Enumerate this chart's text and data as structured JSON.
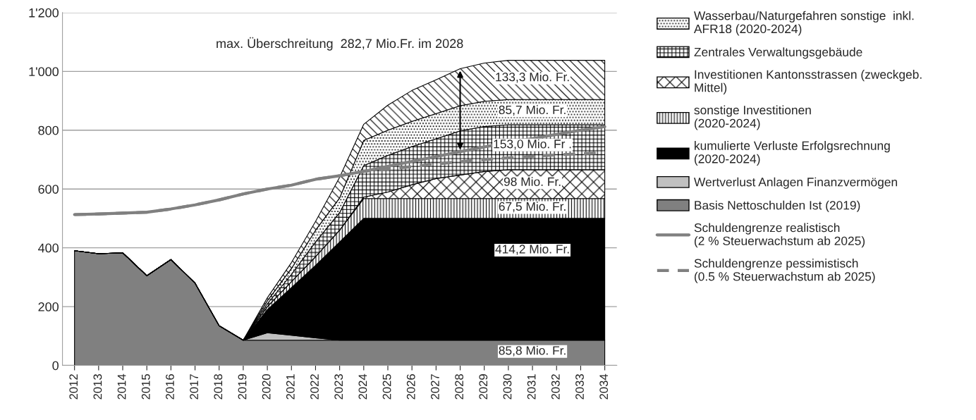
{
  "chart_data": {
    "type": "area",
    "stacked": true,
    "categories": [
      "2012",
      "2013",
      "2014",
      "2015",
      "2016",
      "2017",
      "2018",
      "2019",
      "2020",
      "2021",
      "2022",
      "2023",
      "2024",
      "2025",
      "2026",
      "2027",
      "2028",
      "2029",
      "2030",
      "2031",
      "2032",
      "2033",
      "2034"
    ],
    "series": [
      {
        "name": "Basis Nettoschulden Ist (2019)",
        "color": "#808080",
        "values": [
          390,
          380,
          383,
          305,
          360,
          280,
          135,
          85.8,
          85.8,
          85.8,
          85.8,
          85.8,
          85.8,
          85.8,
          85.8,
          85.8,
          85.8,
          85.8,
          85.8,
          85.8,
          85.8,
          85.8,
          85.8
        ],
        "value_labels": [
          null,
          null,
          null,
          null,
          null,
          null,
          null,
          null,
          null,
          null,
          null,
          null,
          null,
          null,
          null,
          null,
          null,
          null,
          null,
          "85,8 Mio. Fr.",
          null,
          null,
          null
        ]
      },
      {
        "name": "Wertverlust Anlagen Finanzvermögen",
        "color": "#c0c0c0",
        "values": [
          0,
          0,
          0,
          0,
          0,
          0,
          0,
          0,
          25,
          17,
          8,
          0,
          0,
          0,
          0,
          0,
          0,
          0,
          0,
          0,
          0,
          0,
          0
        ]
      },
      {
        "name": "kumulierte Verluste Erfolgsrechnung\n(2020-2024)",
        "color": "#000000",
        "values": [
          0,
          0,
          0,
          0,
          0,
          0,
          0,
          0,
          79,
          162,
          246,
          334,
          414.2,
          414.2,
          414.2,
          414.2,
          414.2,
          414.2,
          414.2,
          414.2,
          414.2,
          414.2,
          414.2
        ],
        "value_labels": [
          null,
          null,
          null,
          null,
          null,
          null,
          null,
          null,
          null,
          null,
          null,
          null,
          null,
          null,
          null,
          null,
          null,
          null,
          null,
          "414,2 Mio. Fr.",
          null,
          null,
          null
        ]
      },
      {
        "name": "sonstige Investitionen\n(2020-2024)",
        "color": "#000000",
        "values": [
          0,
          0,
          0,
          0,
          0,
          0,
          0,
          0,
          10,
          20,
          30,
          40,
          67.5,
          67.5,
          67.5,
          67.5,
          67.5,
          67.5,
          67.5,
          67.5,
          67.5,
          67.5,
          67.5
        ],
        "value_labels": [
          null,
          null,
          null,
          null,
          null,
          null,
          null,
          null,
          null,
          null,
          null,
          null,
          null,
          null,
          null,
          null,
          null,
          null,
          null,
          "67,5 Mio. Fr.",
          null,
          null,
          null
        ]
      },
      {
        "name": "Investitionen Kantonsstrassen (zweckgeb.\nMittel)",
        "color": "#000000",
        "values": [
          0,
          0,
          0,
          0,
          0,
          0,
          0,
          0,
          0,
          0,
          0,
          0,
          5,
          22,
          47,
          68,
          80,
          92,
          98,
          98,
          98,
          98,
          98
        ],
        "value_labels": [
          null,
          null,
          null,
          null,
          null,
          null,
          null,
          null,
          null,
          null,
          null,
          null,
          null,
          null,
          null,
          null,
          null,
          null,
          null,
          "98 Mio. Fr.",
          null,
          null,
          null
        ]
      },
      {
        "name": "Zentrales Verwaltungsgebäude",
        "color": "#000000",
        "values": [
          0,
          0,
          0,
          0,
          0,
          0,
          0,
          0,
          10,
          25,
          50,
          60,
          107,
          125,
          130,
          135,
          150,
          153,
          153,
          153,
          153,
          153,
          153
        ],
        "value_labels": [
          null,
          null,
          null,
          null,
          null,
          null,
          null,
          null,
          null,
          null,
          null,
          null,
          null,
          null,
          null,
          null,
          null,
          null,
          null,
          "153,0 Mio. Fr .",
          null,
          null,
          null
        ]
      },
      {
        "name": "Wasserbau/Naturgefahren sonstige  inkl.\nAFR18 (2020-2024)",
        "color": "#000000",
        "values": [
          0,
          0,
          0,
          0,
          0,
          0,
          0,
          0,
          10,
          20,
          40,
          50,
          85.7,
          85.7,
          85.7,
          85.7,
          85.7,
          85.7,
          85.7,
          85.7,
          85.7,
          85.7,
          85.7
        ],
        "value_labels": [
          null,
          null,
          null,
          null,
          null,
          null,
          null,
          null,
          null,
          null,
          null,
          null,
          null,
          null,
          null,
          null,
          null,
          null,
          null,
          "85,7 Mio. Fr.",
          null,
          null,
          null
        ]
      },
      {
        "color": "#000000",
        "values": [
          0,
          0,
          0,
          0,
          0,
          0,
          0,
          0,
          10,
          20,
          30,
          70,
          55,
          85,
          105,
          115,
          126,
          130,
          133.3,
          133.3,
          133.3,
          133.3,
          133.3
        ],
        "value_labels": [
          null,
          null,
          null,
          null,
          null,
          null,
          null,
          null,
          null,
          null,
          null,
          null,
          null,
          null,
          null,
          null,
          null,
          null,
          null,
          "133,3 Mio. Fr.",
          null,
          null,
          null
        ]
      },
      {
        "name": "Schuldengrenze realistisch\n(2 % Steuerwachstum ab 2025)",
        "type": "line",
        "line_style": "solid",
        "color": "#808080",
        "values": [
          513,
          515,
          518,
          521,
          532,
          546,
          563,
          583,
          600,
          613,
          633,
          645,
          660,
          677,
          694,
          710,
          727,
          743,
          null,
          null,
          null,
          800,
          812
        ]
      },
      {
        "name": "Schuldengrenze pessimistisch\n(0.5 % Steuerwachstum ab 2025)",
        "type": "line",
        "line_style": "dashed",
        "color": "#808080",
        "values": [
          513,
          515,
          518,
          521,
          532,
          546,
          563,
          583,
          600,
          613,
          633,
          645,
          660,
          668,
          676,
          685,
          693,
          700,
          706,
          711,
          716,
          720,
          724
        ]
      }
    ],
    "ylim": [
      0,
      1200
    ],
    "yticks": [
      0,
      200,
      400,
      600,
      800,
      {
        "value": 1000,
        "label": "1'000"
      },
      {
        "value": 1200,
        "label": "1'200"
      }
    ],
    "grid": "y",
    "legend": "right",
    "marker": "none",
    "annotations": [
      {
        "text": "max. Überschreitung  282,7 Mio.Fr. im 2028",
        "x": "2028",
        "y": 1009
      }
    ]
  }
}
